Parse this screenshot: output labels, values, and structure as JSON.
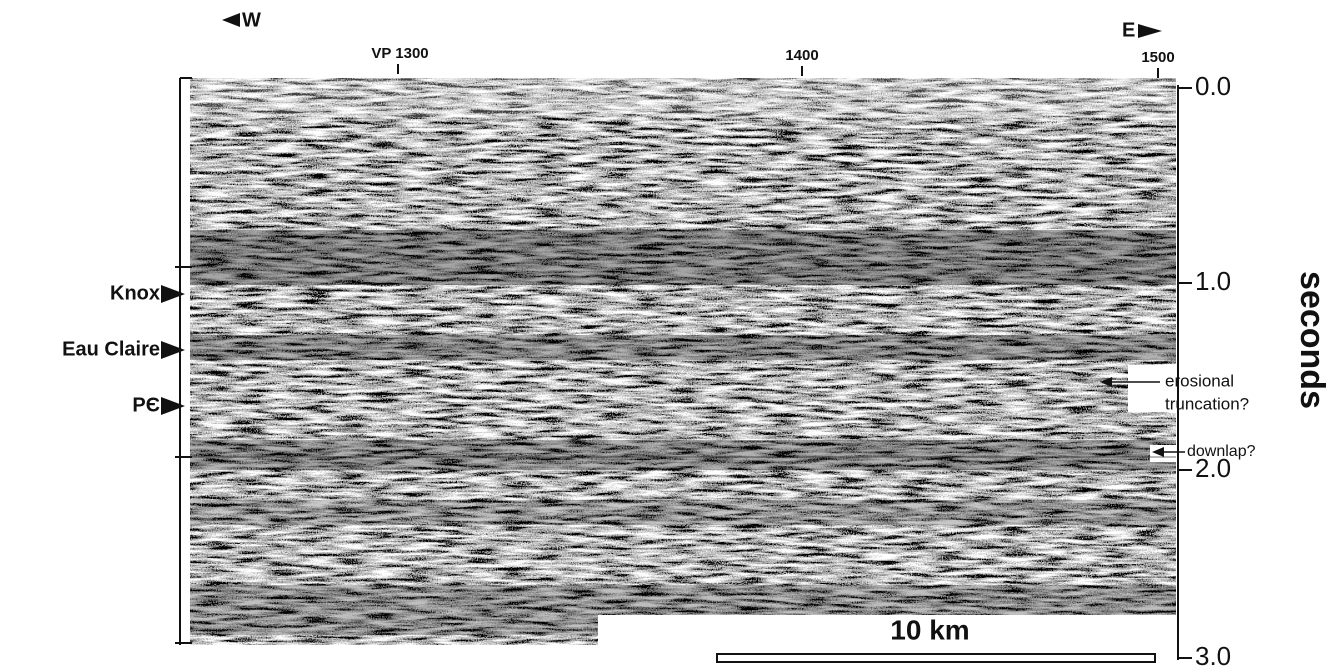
{
  "header": {
    "west": "W",
    "east": "E"
  },
  "shotpoints": [
    "VP 1300",
    "1400",
    "1500"
  ],
  "time_axis": {
    "title": "seconds",
    "ticks": [
      "0.0",
      "1.0",
      "2.0",
      "3.0"
    ]
  },
  "horizons": [
    "Knox",
    "Eau Claire",
    "PЄ"
  ],
  "annotations": {
    "erosional": [
      "erosional",
      "truncation?"
    ],
    "downlap": "downlap?"
  },
  "scale_bar": "10 km"
}
